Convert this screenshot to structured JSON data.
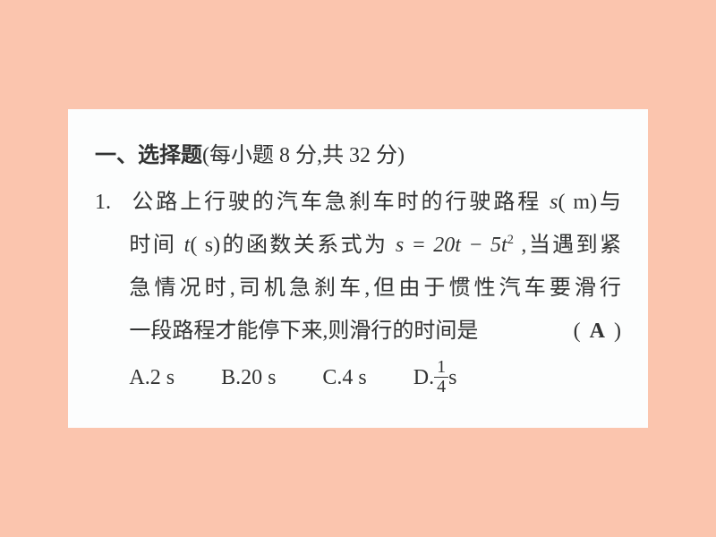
{
  "section": {
    "heading_strong": "一、选择题",
    "heading_rest": "(每小题 8 分,共 32 分)"
  },
  "q": {
    "number": "1.",
    "line1_a": "公路上行驶的汽车急刹车时的行驶路程 ",
    "line1_b": "s",
    "line1_c": "( m)与",
    "line2_a": "时间 ",
    "line2_b": "t",
    "line2_c": "( s)的函数关系式为 ",
    "line2_d": "s = 20t − 5t",
    "line2_e": " ,当遇到紧",
    "line3": "急情况时,司机急刹车,但由于惯性汽车要滑行",
    "line4_a": "一段路程才能停下来,则滑行的时间是",
    "line4_b": "(",
    "answer": "A",
    "line4_c": ")"
  },
  "opts": {
    "a": "A.2 s",
    "b": "B.20 s",
    "c": "C.4 s",
    "d_label": "D.",
    "d_num": "1",
    "d_den": "4",
    "d_unit": "s"
  }
}
